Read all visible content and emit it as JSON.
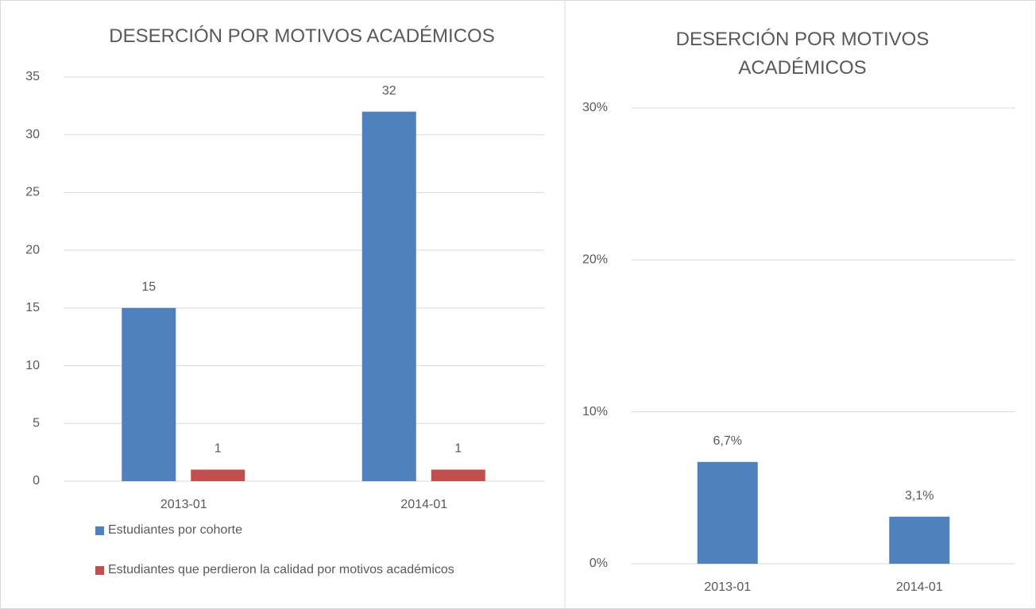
{
  "chart_data": [
    {
      "type": "bar",
      "title": "DESERCIÓN POR MOTIVOS ACADÉMICOS",
      "categories": [
        "2013-01",
        "2014-01"
      ],
      "series": [
        {
          "name": "Estudiantes por cohorte",
          "color": "#4f81bd",
          "values": [
            15,
            32
          ]
        },
        {
          "name": "Estudiantes que perdieron la calidad por motivos académicos",
          "color": "#c0504d",
          "values": [
            1,
            1
          ]
        }
      ],
      "ylim": [
        0,
        35
      ],
      "yticks": [
        0,
        5,
        10,
        15,
        20,
        25,
        30,
        35
      ],
      "grid": true,
      "legend": "bottom"
    },
    {
      "type": "bar",
      "title": "DESERCIÓN POR MOTIVOS ACADÉMICOS",
      "categories": [
        "2013-01",
        "2014-01"
      ],
      "values": [
        6.7,
        3.1
      ],
      "value_labels": [
        "6,7%",
        "3,1%"
      ],
      "color": "#4f81bd",
      "ylim": [
        0,
        30
      ],
      "yticks": [
        {
          "value": 0,
          "label": "0%"
        },
        {
          "value": 10,
          "label": "10%"
        },
        {
          "value": 20,
          "label": "20%"
        },
        {
          "value": 30,
          "label": "30%"
        }
      ],
      "grid": true
    }
  ]
}
